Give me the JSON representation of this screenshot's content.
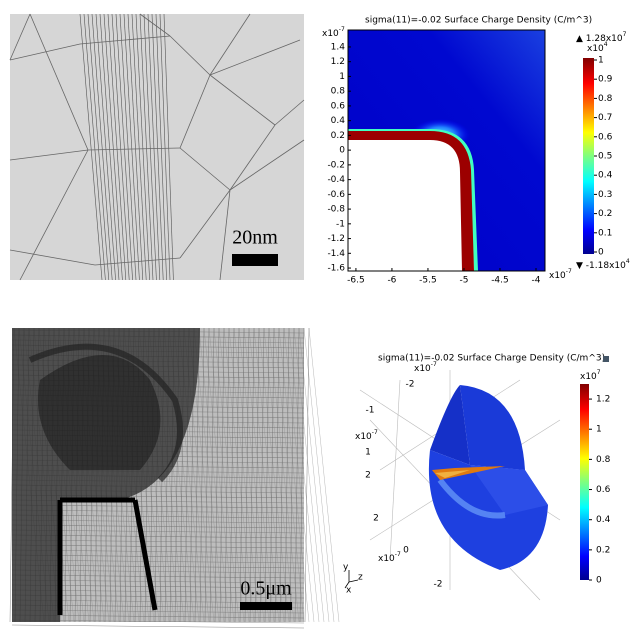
{
  "panels": [
    {
      "scale_bar": "20nm"
    },
    {
      "title": "sigma(11)=-0.02   Surface Charge Density (C/m^3)",
      "x_multiplier": {
        "base": "x10",
        "exp": "-7"
      },
      "y_multiplier": {
        "base": "x10",
        "exp": "-7"
      },
      "xlim": [
        -6.61,
        -3.875
      ],
      "xticks": [
        -6.5,
        -6,
        -5.5,
        -5,
        -4.5,
        -4
      ],
      "ylim": [
        -1.64,
        1.63
      ],
      "yticks": [
        1.4,
        1.2,
        1,
        0.8,
        0.6,
        0.4,
        0.2,
        0,
        -0.2,
        -0.4,
        -0.6,
        -0.8,
        -1,
        -1.2,
        -1.4,
        -1.6
      ],
      "colorbar": {
        "max_label": {
          "base": "▲ 1.28x10",
          "exp": "7"
        },
        "multiplier": {
          "base": "x10",
          "exp": "4"
        },
        "min_label": {
          "base": "▼ -1.18x10",
          "exp": "4"
        },
        "lim": [
          0,
          1
        ],
        "ticks": [
          1,
          0.9,
          0.8,
          0.7,
          0.6,
          0.5,
          0.4,
          0.3,
          0.2,
          0.1,
          0
        ]
      }
    },
    {
      "scale_bar": "0.5μm"
    },
    {
      "title": "sigma(11)=-0.02   Surface Charge Density (C/m^3)",
      "multipliers": [
        {
          "base": "x10",
          "exp": "-7"
        },
        {
          "base": "x10",
          "exp": "-7"
        },
        {
          "base": "x10",
          "exp": "-7"
        }
      ],
      "axis_a_ticks": [
        -2,
        -1
      ],
      "axis_b_ticks": [
        1,
        2
      ],
      "axis_c_ticks": [
        2,
        0,
        -2
      ],
      "triad": [
        "y",
        "z",
        "x"
      ],
      "colorbar": {
        "multiplier": {
          "base": "x10",
          "exp": "7"
        },
        "lim": [
          0,
          1.3
        ],
        "ticks": [
          1.2,
          1,
          0.8,
          0.6,
          0.4,
          0.2,
          0
        ]
      }
    }
  ]
}
